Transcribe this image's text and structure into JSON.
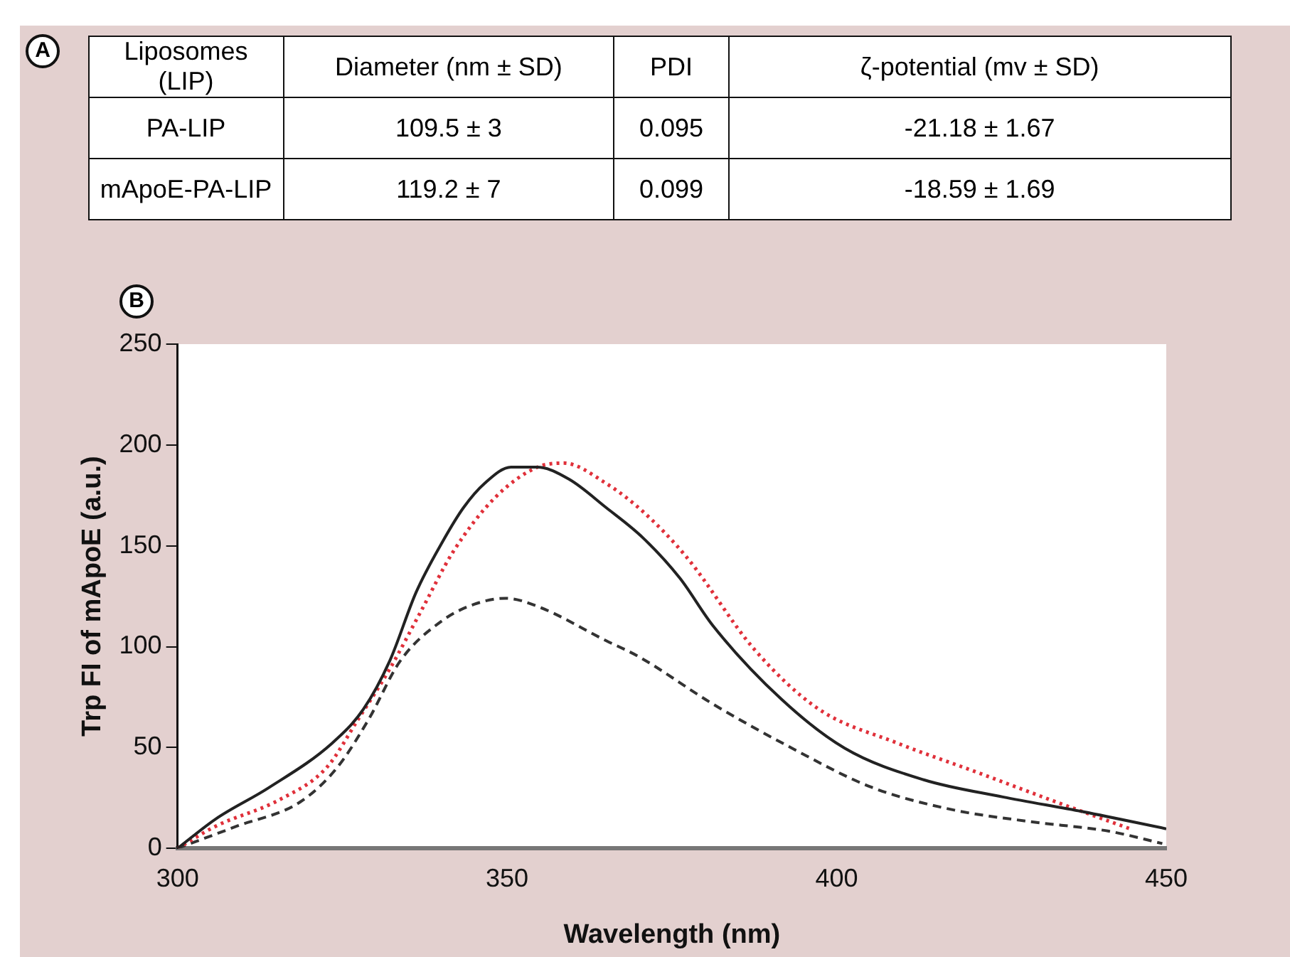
{
  "chart_data": [
    {
      "type": "other",
      "title": "A",
      "annotations": [
        "Liposomes (LIP)",
        "Diameter (nm ± SD)",
        "PDI",
        "ζ-potential (mv ± SD)",
        "PA-LIP",
        "109.5 ± 3",
        "0.095",
        "-21.18 ± 1.67",
        "mApoE-PA-LIP",
        "119.2 ± 7",
        "0.099",
        "-18.59 ± 1.69"
      ]
    },
    {
      "type": "line",
      "title": "B",
      "xlabel": "Wavelength (nm)",
      "ylabel": "Trp FI of mApoE (a.u.)",
      "xlim": [
        300,
        450
      ],
      "xticks": [
        300,
        350,
        400,
        450
      ],
      "ylim": [
        0,
        250
      ],
      "yticks": [
        0,
        50,
        100,
        150,
        200,
        250
      ],
      "grid": false,
      "legend": false,
      "series": [
        {
          "color": "#222222",
          "line_style": "solid",
          "x": [
            300,
            305.8,
            313.8,
            323.4,
            328.2,
            332.2,
            336.2,
            340.2,
            343.4,
            346.6,
            350.6,
            354.6,
            359.4,
            365,
            370.6,
            376.2,
            381.2,
            391.6,
            401.2,
            413.2,
            425.2,
            437.3,
            450
          ],
          "values": [
            0,
            14.6,
            30,
            52,
            69,
            93,
            127,
            152,
            169,
            181,
            189,
            189,
            183,
            169,
            154,
            134,
            110.5,
            74,
            49.7,
            34,
            25.5,
            18.2,
            9.7
          ]
        },
        {
          "color": "#e0303a",
          "line_style": "dotted",
          "x": [
            300,
            305.8,
            315.4,
            322.6,
            327.4,
            332.2,
            337,
            341.8,
            348.2,
            354.6,
            358.6,
            365,
            370.6,
            377.2,
            387.6,
            397.2,
            409.2,
            421.3,
            433.3,
            444.5
          ],
          "values": [
            0,
            11,
            24,
            40,
            64,
            89,
            118,
            147,
            174,
            189,
            191,
            181,
            167,
            144.5,
            98.3,
            69.2,
            52.2,
            37.7,
            23,
            9.7
          ]
        },
        {
          "color": "#333333",
          "line_style": "dashed",
          "x": [
            300,
            309,
            318.6,
            324.2,
            329,
            333.8,
            340.2,
            345,
            349.8,
            354.6,
            365,
            370,
            381.2,
            393.2,
            405.2,
            417.2,
            429.2,
            441.3,
            449.4
          ],
          "values": [
            0,
            11,
            23,
            40,
            64,
            93,
            113,
            121,
            124,
            120,
            103,
            95,
            71.6,
            49.7,
            30.4,
            19.4,
            13.3,
            8.5,
            2.4
          ]
        }
      ]
    }
  ]
}
